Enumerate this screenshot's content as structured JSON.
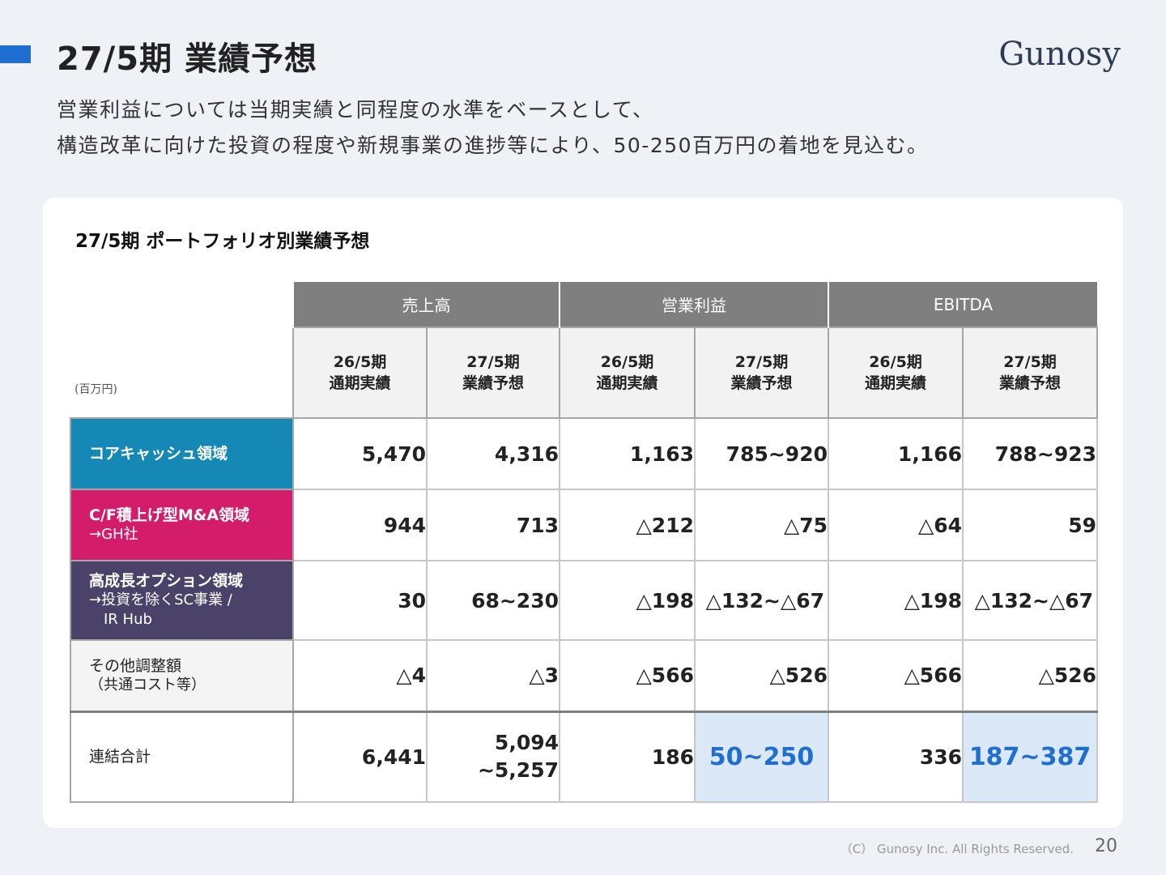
{
  "header": {
    "title": "27/5期 業績予想",
    "logo": "Gunosy",
    "subtitle_line1": "営業利益については当期実績と同程度の水準をベースとして、",
    "subtitle_line2": "構造改革に向けた投資の程度や新規事業の進捗等により、50-250百万円の着地を見込む。"
  },
  "card": {
    "title": "27/5期  ポートフォリオ別業績予想",
    "unit": "(百万円)",
    "groups": [
      "売上高",
      "営業利益",
      "EBITDA"
    ],
    "subheaders": [
      {
        "line1": "26/5期",
        "line2": "通期実績"
      },
      {
        "line1": "27/5期",
        "line2": "業績予想"
      },
      {
        "line1": "26/5期",
        "line2": "通期実績"
      },
      {
        "line1": "27/5期",
        "line2": "業績予想"
      },
      {
        "line1": "26/5期",
        "line2": "通期実績"
      },
      {
        "line1": "27/5期",
        "line2": "業績予想"
      }
    ],
    "rows": [
      {
        "label": "コアキャッシュ領域",
        "sub": "",
        "sub2": "",
        "values": [
          "5,470",
          "4,316",
          "1,163",
          "785~920",
          "1,166",
          "788~923"
        ]
      },
      {
        "label": "C/F積上げ型M&A領域",
        "sub": "→GH社",
        "sub2": "",
        "values": [
          "944",
          "713",
          "△212",
          "△75",
          "△64",
          "59"
        ]
      },
      {
        "label": "高成長オプション領域",
        "sub": "→投資を除くSC事業 /",
        "sub2": "IR Hub",
        "values": [
          "30",
          "68~230",
          "△198",
          "△132~△67",
          "△198",
          "△132~△67"
        ]
      },
      {
        "label": "その他調整額",
        "sub": "（共通コスト等）",
        "sub2": "",
        "values": [
          "△4",
          "△3",
          "△566",
          "△526",
          "△566",
          "△526"
        ]
      },
      {
        "label": "連結合計",
        "sub": "",
        "sub2": "",
        "values": [
          "6,441",
          "5,094",
          "186",
          "50~250",
          "336",
          "187~387"
        ],
        "value2_line2": "~5,257"
      }
    ]
  },
  "footer": {
    "copyright": "（C） Gunosy Inc. All Rights Reserved.",
    "page": "20"
  },
  "colors": {
    "accent": "#1f6fd0",
    "core": "#1588b5",
    "cf": "#d31c6a",
    "high_growth": "#4b426a",
    "highlight_bg": "#dbe8f7"
  }
}
